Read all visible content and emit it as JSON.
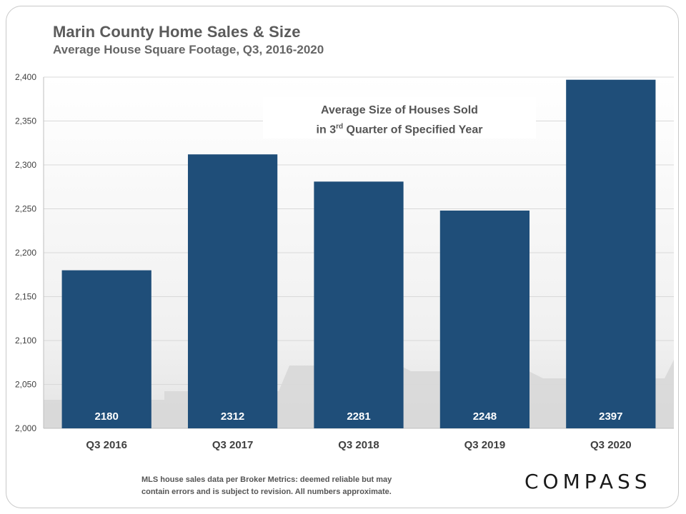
{
  "title": "Marin County Home Sales & Size",
  "subtitle": "Average House Square Footage, Q3, 2016-2020",
  "annotation": {
    "line1": "Average Size of Houses Sold",
    "line2_pre": "in 3",
    "line2_sup": "rd",
    "line2_post": " Quarter of Specified Year"
  },
  "footnote": {
    "line1": "MLS house sales data per Broker Metrics:  deemed reliable but may",
    "line2": "contain errors and is subject to revision. All numbers approximate."
  },
  "brand": "COMPASS",
  "colors": {
    "bar": "#1f4e79",
    "grid": "#d9d9d9",
    "axis_text": "#404040"
  },
  "chart_data": {
    "type": "bar",
    "categories": [
      "Q3 2016",
      "Q3 2017",
      "Q3 2018",
      "Q3 2019",
      "Q3 2020"
    ],
    "values": [
      2180,
      2312,
      2281,
      2248,
      2397
    ],
    "data_labels": [
      "2180",
      "2312",
      "2281",
      "2248",
      "2397"
    ],
    "ylim": [
      2000,
      2400
    ],
    "yticks": [
      2000,
      2050,
      2100,
      2150,
      2200,
      2250,
      2300,
      2350,
      2400
    ],
    "ytick_labels": [
      "2,000",
      "2,050",
      "2,100",
      "2,150",
      "2,200",
      "2,250",
      "2,300",
      "2,350",
      "2,400"
    ],
    "grid": true,
    "xlabel": "",
    "ylabel": ""
  }
}
